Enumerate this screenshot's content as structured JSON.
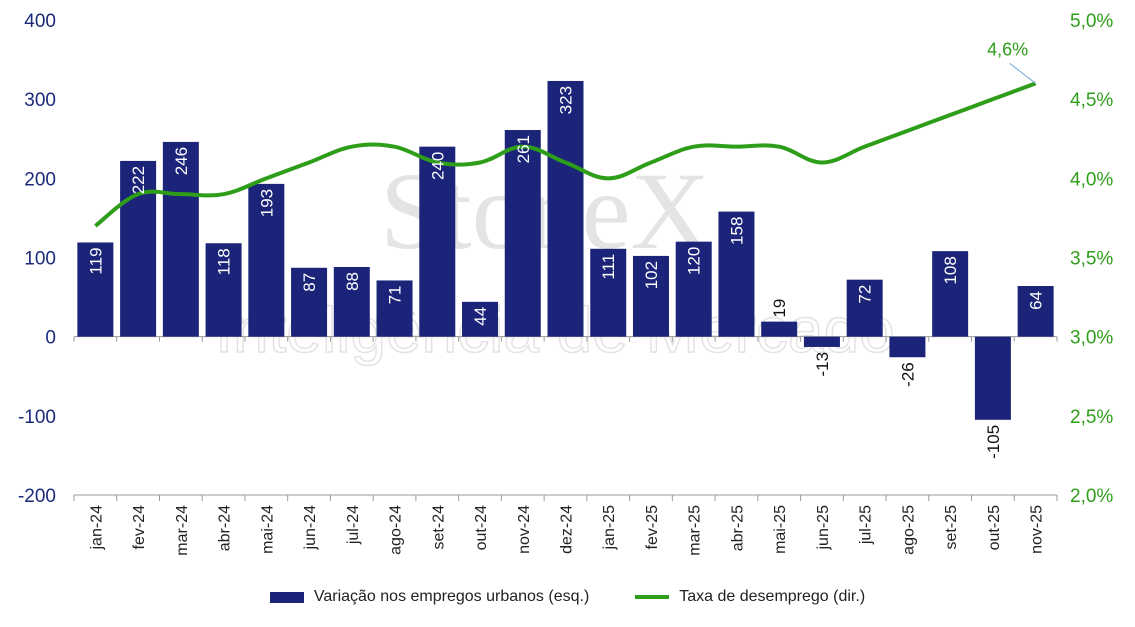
{
  "chart_data": {
    "type": "bar",
    "categories": [
      "jan-24",
      "fev-24",
      "mar-24",
      "abr-24",
      "mai-24",
      "jun-24",
      "jul-24",
      "ago-24",
      "set-24",
      "out-24",
      "nov-24",
      "dez-24",
      "jan-25",
      "fev-25",
      "mar-25",
      "abr-25",
      "mai-25",
      "jun-25",
      "jul-25",
      "ago-25",
      "set-25",
      "out-25",
      "nov-25"
    ],
    "series": [
      {
        "name": "Variação nos empregos urbanos (esq.)",
        "type": "bar",
        "axis": "left",
        "values": [
          119,
          222,
          246,
          118,
          193,
          87,
          88,
          71,
          240,
          44,
          261,
          323,
          111,
          102,
          120,
          158,
          19,
          -13,
          72,
          -26,
          108,
          -105,
          64
        ],
        "labels": [
          "119",
          "222",
          "246",
          "118",
          "193",
          "87",
          "88",
          "71",
          "240",
          "44",
          "261",
          "323",
          "111",
          "102",
          "120",
          "158",
          "19",
          "-13",
          "72",
          "-26",
          "108",
          "-105",
          "64"
        ]
      },
      {
        "name": "Taxa de desemprego (dir.)",
        "type": "line",
        "axis": "right",
        "values": [
          3.7,
          3.9,
          3.9,
          3.9,
          4.0,
          4.1,
          4.2,
          4.2,
          4.1,
          4.1,
          4.2,
          4.1,
          4.0,
          4.1,
          4.2,
          4.2,
          4.2,
          4.1,
          4.2,
          4.3,
          4.4,
          4.5,
          4.6
        ]
      }
    ],
    "ylim_left": [
      -200,
      400
    ],
    "yticks_left": [
      "400",
      "300",
      "200",
      "100",
      "0",
      "-100",
      "-200"
    ],
    "ylim_right": [
      2.0,
      5.0
    ],
    "yticks_right": [
      "5,0%",
      "4,5%",
      "4,0%",
      "3,5%",
      "3,0%",
      "2,5%",
      "2,0%"
    ],
    "annotation": "4,6%",
    "grid": false,
    "legend_position": "bottom",
    "colors": {
      "bars": "#1b2479",
      "line": "#2e9e1a",
      "left_axis": "#1b2a7a",
      "right_axis": "#2e9e1a"
    }
  },
  "watermark": {
    "line1": "StoneX",
    "line2": "Inteligência de Mercado"
  },
  "legend": {
    "bars_label": "Variação nos empregos urbanos (esq.)",
    "line_label": "Taxa de desemprego (dir.)"
  }
}
